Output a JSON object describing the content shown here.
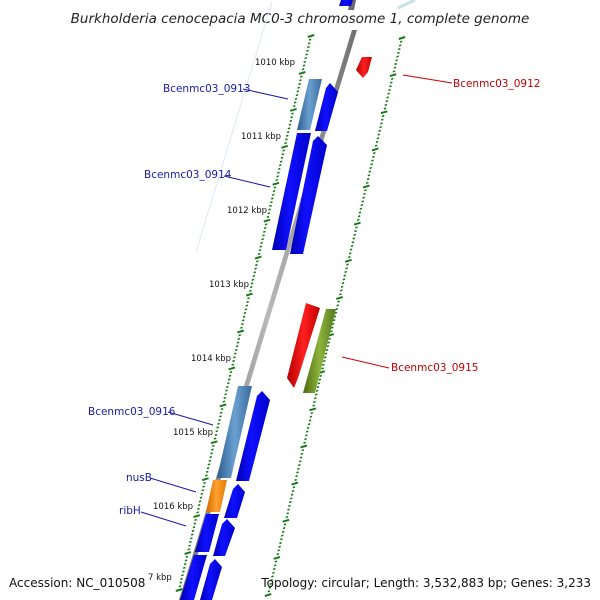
{
  "title": "Burkholderia cenocepacia MC0-3 chromosome 1, complete genome",
  "footer": {
    "accession": "Accession: NC_010508",
    "summary": "Topology: circular; Length: 3,532,883 bp; Genes: 3,233"
  },
  "ruler": [
    {
      "label": "1010 kbp"
    },
    {
      "label": "1011 kbp"
    },
    {
      "label": "1012 kbp"
    },
    {
      "label": "1013 kbp"
    },
    {
      "label": "1014 kbp"
    },
    {
      "label": "1015 kbp"
    },
    {
      "label": "1016 kbp"
    },
    {
      "label": "7 kbp"
    }
  ],
  "genes": [
    {
      "name": "Bcenmc03_0912",
      "strand": "reverse",
      "color": "#cc0000"
    },
    {
      "name": "Bcenmc03_0913",
      "strand": "forward",
      "color": "#1a1aa8"
    },
    {
      "name": "Bcenmc03_0914",
      "strand": "forward",
      "color": "#1a1aa8"
    },
    {
      "name": "Bcenmc03_0915",
      "strand": "reverse",
      "color": "#cc0000"
    },
    {
      "name": "Bcenmc03_0916",
      "strand": "forward",
      "color": "#1a1aa8"
    },
    {
      "name": "nusB",
      "strand": "forward",
      "color": "#1a1aa8"
    },
    {
      "name": "ribH",
      "strand": "forward",
      "color": "#1a1aa8"
    }
  ],
  "colors": {
    "backbone": "#8a8a8a",
    "cds": "#0000ee",
    "gene_feature": "#4a7fb0",
    "ortholog": "#ff8c00",
    "reverse_cds": "#ee0000",
    "reverse_feature": "#6b8e23",
    "ticks": "#1a7a1a"
  }
}
